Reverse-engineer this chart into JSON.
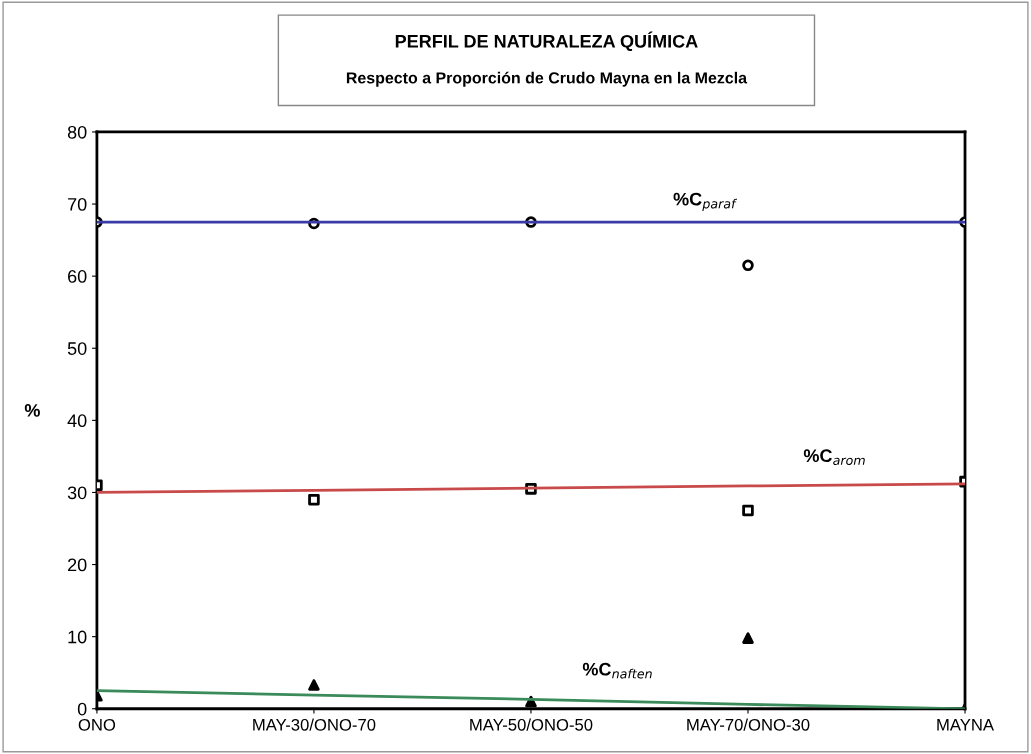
{
  "chart_data": {
    "type": "scatter",
    "title": "PERFIL DE NATURALEZA QUÍMICA",
    "subtitle": "Respecto a Proporción de Crudo Mayna en la Mezcla",
    "ylabel": "%",
    "categories": [
      "ONO",
      "MAY-30/ONO-70",
      "MAY-50/ONO-50",
      "MAY-70/ONO-30",
      "MAYNA"
    ],
    "series": [
      {
        "type": "line",
        "name": "%C$_{paraf}$",
        "color": "#3a3aa8",
        "values": [
          67.5,
          67.5,
          67.5,
          67.5,
          67.5
        ],
        "marker": "none"
      },
      {
        "type": "line",
        "name": "%C$_{arom}$",
        "color": "#c84a4a",
        "values": [
          30,
          30.3,
          30.6,
          30.9,
          31.2
        ],
        "marker": "none"
      },
      {
        "type": "line",
        "name": "%C$_{naften}$",
        "color": "#3a8a5a",
        "values": [
          2.5,
          1.9,
          1.3,
          0.6,
          0
        ],
        "marker": "none"
      },
      {
        "color": "#000000",
        "values": [
          67.5,
          67.3,
          67.5,
          61.5,
          67.5
        ],
        "marker": "circle"
      },
      {
        "color": "#000000",
        "values": [
          31,
          29,
          30.5,
          27.5,
          31.5
        ],
        "marker": "square"
      },
      {
        "color": "#000000",
        "values": [
          1.8,
          3.3,
          1,
          9.8,
          0
        ],
        "marker": "triangle"
      }
    ],
    "ylim": [
      0,
      80
    ],
    "yticks": [
      0,
      10,
      20,
      30,
      40,
      50,
      60,
      70,
      80
    ],
    "grid": false
  }
}
